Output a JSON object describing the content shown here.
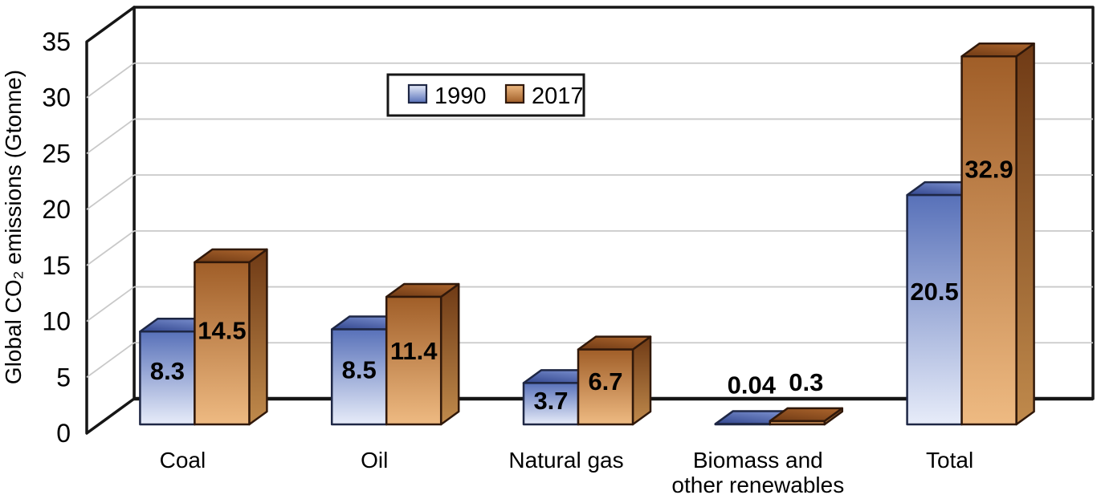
{
  "chart_data": {
    "type": "bar",
    "projection": "3d",
    "title": "",
    "xlabel": "",
    "ylabel": "Global CO₂ emissions (Gtonne)",
    "ylim": [
      0,
      35
    ],
    "yticks": [
      0,
      5,
      10,
      15,
      20,
      25,
      30,
      35
    ],
    "grid": true,
    "legend_position": "top-center",
    "categories": [
      "Coal",
      "Oil",
      "Natural gas",
      "Biomass and\nother renewables",
      "Total"
    ],
    "series": [
      {
        "name": "1990",
        "values": [
          8.3,
          8.5,
          3.7,
          0.04,
          20.5
        ],
        "value_labels": [
          "8.3",
          "8.5",
          "3.7",
          "0.04",
          "20.5"
        ],
        "colors": {
          "front_top": "#5871b9",
          "front_bottom": "#e7ecf9",
          "top_dark": "#32468e",
          "top_light": "#7388c8",
          "side_top": "#47619e",
          "side_bottom": "#93a5d6",
          "outline": "#1e2745"
        }
      },
      {
        "name": "2017",
        "values": [
          14.5,
          11.4,
          6.7,
          0.3,
          32.9
        ],
        "value_labels": [
          "14.5",
          "11.4",
          "6.7",
          "0.3",
          "32.9"
        ],
        "colors": {
          "front_top": "#a05e28",
          "front_bottom": "#eeba82",
          "top_dark": "#6f3a15",
          "top_light": "#a5602a",
          "side_top": "#6f3a15",
          "side_bottom": "#c08a4c",
          "outline": "#30180a"
        }
      }
    ],
    "colors": {
      "grid": "#c9c9c9",
      "frame": "#161616",
      "background": "#ffffff",
      "text": "#000000"
    }
  }
}
